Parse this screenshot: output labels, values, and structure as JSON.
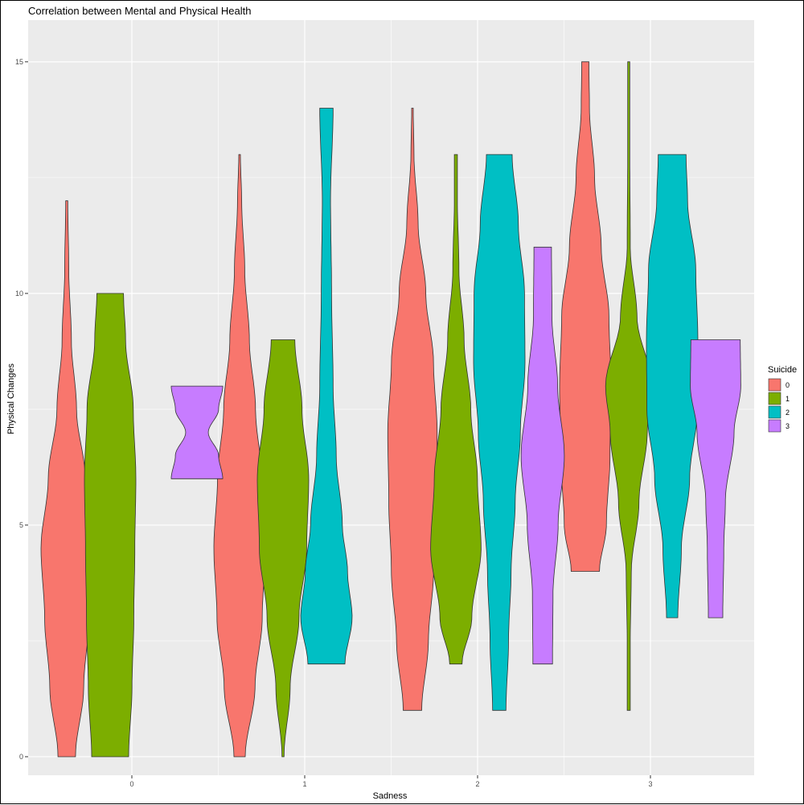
{
  "chart_data": {
    "type": "violin",
    "title": "Correlation between Mental and Physical Health",
    "xlabel": "Sadness",
    "ylabel": "Physical Changes",
    "categories": [
      "0",
      "1",
      "2",
      "3"
    ],
    "xticks": [
      "0",
      "1",
      "2",
      "3"
    ],
    "yticks": [
      0,
      5,
      10,
      15
    ],
    "ytick_labels": [
      "0",
      "5",
      "10",
      "15"
    ],
    "ylim": [
      -0.4,
      15.9
    ],
    "grid": true,
    "legend": {
      "title": "Suicide",
      "position": "right",
      "entries": [
        "0",
        "1",
        "2",
        "3"
      ]
    },
    "colors": {
      "0": "#F8766D",
      "1": "#7CAE00",
      "2": "#00BFC4",
      "3": "#C77CFF",
      "panel_background": "#EBEBEB",
      "grid": "#FFFFFF",
      "outline": "#333333"
    },
    "series": [
      {
        "name": "0",
        "violins": [
          {
            "sadness": "0",
            "min": 0,
            "max": 12,
            "profile": [
              [
                0,
                0.34
              ],
              [
                1.5,
                0.66
              ],
              [
                3,
                0.86
              ],
              [
                4.5,
                1.0
              ],
              [
                6,
                0.72
              ],
              [
                7.5,
                0.38
              ],
              [
                9,
                0.18
              ],
              [
                10.5,
                0.08
              ],
              [
                12,
                0.04
              ]
            ]
          },
          {
            "sadness": "1",
            "min": 0,
            "max": 13,
            "profile": [
              [
                0,
                0.22
              ],
              [
                1.5,
                0.6
              ],
              [
                3,
                0.88
              ],
              [
                4.5,
                1.0
              ],
              [
                6,
                0.86
              ],
              [
                7.5,
                0.62
              ],
              [
                9,
                0.38
              ],
              [
                10.5,
                0.2
              ],
              [
                12,
                0.08
              ],
              [
                13,
                0.03
              ]
            ]
          },
          {
            "sadness": "2",
            "min": 1,
            "max": 14,
            "profile": [
              [
                1,
                0.36
              ],
              [
                2.5,
                0.62
              ],
              [
                4,
                0.82
              ],
              [
                5.5,
                0.92
              ],
              [
                7,
                0.96
              ],
              [
                8.5,
                0.82
              ],
              [
                10,
                0.52
              ],
              [
                11.5,
                0.22
              ],
              [
                13,
                0.06
              ],
              [
                14,
                0.03
              ]
            ]
          },
          {
            "sadness": "3",
            "min": 4,
            "max": 15,
            "profile": [
              [
                4,
                0.55
              ],
              [
                5,
                0.82
              ],
              [
                6.5,
                0.96
              ],
              [
                8,
                1.0
              ],
              [
                9.5,
                0.92
              ],
              [
                11,
                0.62
              ],
              [
                12.5,
                0.36
              ],
              [
                14,
                0.16
              ],
              [
                15,
                0.14
              ]
            ]
          }
        ]
      },
      {
        "name": "1",
        "violins": [
          {
            "sadness": "0",
            "min": 0,
            "max": 10,
            "profile": [
              [
                0,
                0.72
              ],
              [
                1.5,
                0.85
              ],
              [
                3,
                0.92
              ],
              [
                4.5,
                0.96
              ],
              [
                6,
                1.0
              ],
              [
                7.5,
                0.9
              ],
              [
                9,
                0.6
              ],
              [
                10,
                0.52
              ]
            ]
          },
          {
            "sadness": "1",
            "min": 0,
            "max": 9,
            "profile": [
              [
                0,
                0.04
              ],
              [
                1.5,
                0.28
              ],
              [
                3,
                0.62
              ],
              [
                4.5,
                0.92
              ],
              [
                6,
                1.0
              ],
              [
                7.5,
                0.74
              ],
              [
                9,
                0.46
              ]
            ]
          },
          {
            "sadness": "2",
            "min": 2,
            "max": 13,
            "profile": [
              [
                2,
                0.24
              ],
              [
                3,
                0.62
              ],
              [
                4.5,
                0.98
              ],
              [
                6,
                0.84
              ],
              [
                7.5,
                0.58
              ],
              [
                9,
                0.32
              ],
              [
                10.5,
                0.12
              ],
              [
                12,
                0.06
              ],
              [
                13,
                0.06
              ]
            ]
          },
          {
            "sadness": "3",
            "min": 1,
            "max": 15,
            "profile": [
              [
                1,
                0.06
              ],
              [
                2.5,
                0.06
              ],
              [
                4,
                0.1
              ],
              [
                5.5,
                0.4
              ],
              [
                7,
                0.72
              ],
              [
                8,
                0.9
              ],
              [
                9.5,
                0.32
              ],
              [
                11,
                0.06
              ],
              [
                13,
                0.04
              ],
              [
                15,
                0.04
              ]
            ]
          }
        ]
      },
      {
        "name": "2",
        "violins": [
          {
            "sadness": "1",
            "min": 2,
            "max": 14,
            "profile": [
              [
                2,
                0.72
              ],
              [
                3,
                1.0
              ],
              [
                4,
                0.82
              ],
              [
                5,
                0.62
              ],
              [
                6.5,
                0.38
              ],
              [
                8,
                0.26
              ],
              [
                10,
                0.2
              ],
              [
                12,
                0.16
              ],
              [
                14,
                0.26
              ]
            ]
          },
          {
            "sadness": "2",
            "min": 1,
            "max": 13,
            "profile": [
              [
                1,
                0.26
              ],
              [
                2.5,
                0.36
              ],
              [
                4,
                0.46
              ],
              [
                5.5,
                0.62
              ],
              [
                7,
                0.82
              ],
              [
                8.5,
                1.0
              ],
              [
                10,
                0.98
              ],
              [
                11.5,
                0.74
              ],
              [
                13,
                0.5
              ]
            ]
          },
          {
            "sadness": "3",
            "min": 3,
            "max": 13,
            "profile": [
              [
                3,
                0.22
              ],
              [
                4.5,
                0.36
              ],
              [
                6,
                0.68
              ],
              [
                7.5,
                0.98
              ],
              [
                9,
                1.0
              ],
              [
                10.5,
                0.92
              ],
              [
                12,
                0.6
              ],
              [
                13,
                0.54
              ]
            ]
          }
        ]
      },
      {
        "name": "3",
        "violins": [
          {
            "sadness": "0",
            "min": 6,
            "max": 8,
            "profile": [
              [
                6,
                1.0
              ],
              [
                6.5,
                0.84
              ],
              [
                7,
                0.44
              ],
              [
                7.5,
                0.84
              ],
              [
                8,
                1.0
              ]
            ]
          },
          {
            "sadness": "2",
            "min": 2,
            "max": 11,
            "profile": [
              [
                2,
                0.38
              ],
              [
                3.5,
                0.4
              ],
              [
                5,
                0.6
              ],
              [
                6.5,
                0.84
              ],
              [
                8,
                0.58
              ],
              [
                9.5,
                0.36
              ],
              [
                11,
                0.34
              ]
            ]
          },
          {
            "sadness": "3",
            "min": 3,
            "max": 9,
            "profile": [
              [
                3,
                0.28
              ],
              [
                4.5,
                0.32
              ],
              [
                5.5,
                0.38
              ],
              [
                7,
                0.72
              ],
              [
                8,
                0.98
              ],
              [
                9,
                0.96
              ]
            ]
          }
        ]
      }
    ]
  }
}
